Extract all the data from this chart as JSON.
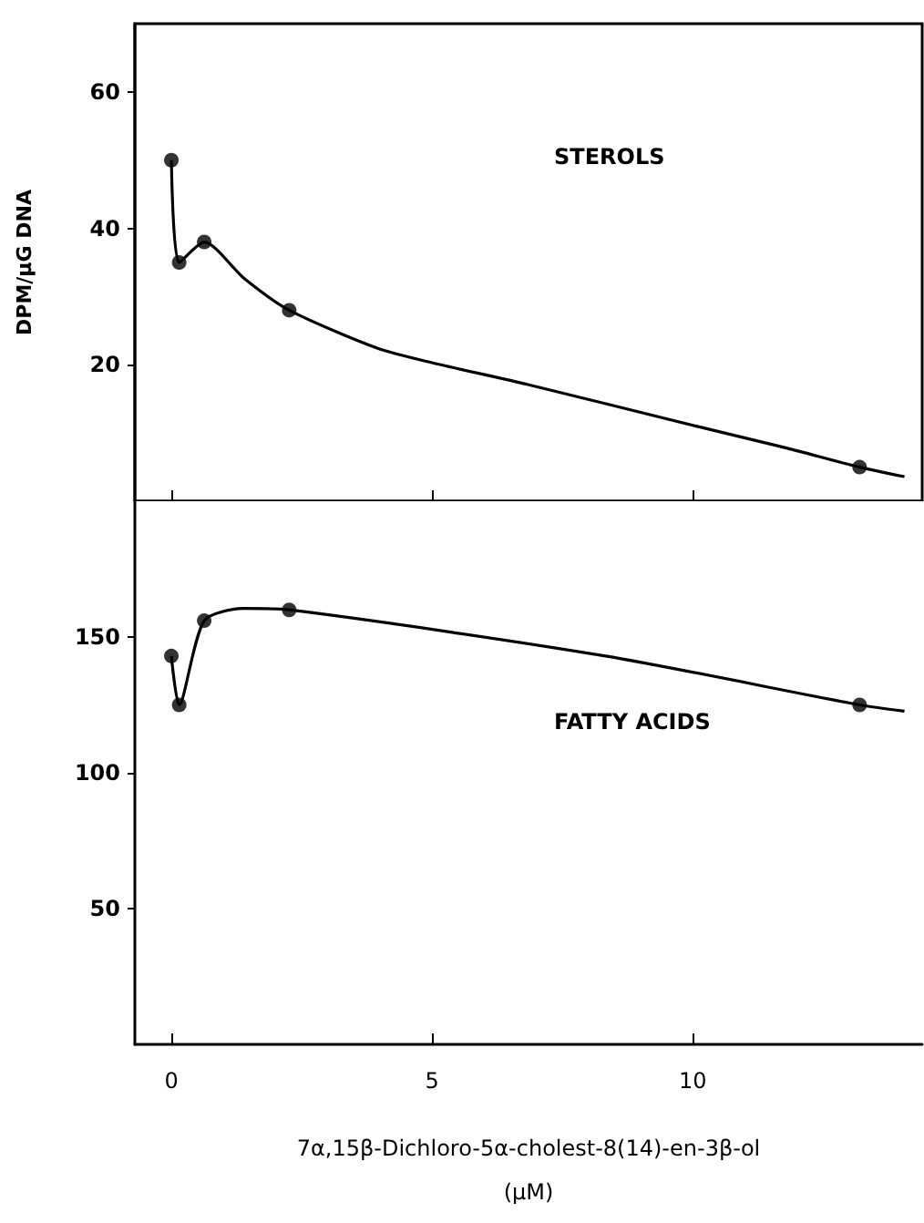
{
  "chart_data": [
    {
      "type": "line",
      "ylabel": "DPM/µG DNA",
      "annotations": [
        "STEROLS"
      ],
      "xlim": [
        -0.7,
        14.4
      ],
      "xticks": [
        0,
        5,
        10
      ],
      "ylim": [
        0,
        70
      ],
      "yticks": [
        20,
        40,
        60
      ],
      "tick_labels": "y",
      "grid": false,
      "series": [
        {
          "type": "scatter",
          "color": "#000000",
          "marker": "circle",
          "x": [
            0,
            0.15,
            0.63,
            2.26,
            13.2
          ],
          "values": [
            50,
            35,
            38,
            28,
            5
          ]
        },
        {
          "type": "line",
          "color": "#000000",
          "marker": "none",
          "x": [
            0,
            0.15,
            0.63,
            1.39,
            2.26,
            3.96,
            5,
            6.84,
            10.07,
            11.8,
            13.2,
            14.06
          ],
          "values": [
            50,
            35,
            38,
            32.7,
            28,
            22.4,
            20.3,
            17.1,
            11,
            7.8,
            5,
            3.6
          ]
        }
      ]
    },
    {
      "type": "line",
      "xlabel": "7α,15β-Dichloro-5α-cholest-8(14)-en-3β-ol\n(µM)",
      "annotations": [
        "FATTY ACIDS"
      ],
      "xlim": [
        -0.7,
        14.4
      ],
      "xticks": [
        0,
        5,
        10
      ],
      "ylim": [
        0,
        200
      ],
      "yticks": [
        50,
        100,
        150
      ],
      "grid": false,
      "series": [
        {
          "type": "scatter",
          "color": "#000000",
          "marker": "circle",
          "x": [
            0,
            0.15,
            0.63,
            2.26,
            13.2
          ],
          "values": [
            143,
            125,
            156,
            160,
            125
          ]
        },
        {
          "type": "line",
          "color": "#000000",
          "marker": "none",
          "x": [
            0,
            0.15,
            0.63,
            1.39,
            2.26,
            8.33,
            13.2,
            14.06
          ],
          "values": [
            143,
            125,
            156,
            160.5,
            160,
            143,
            125,
            122.7
          ]
        }
      ]
    }
  ]
}
